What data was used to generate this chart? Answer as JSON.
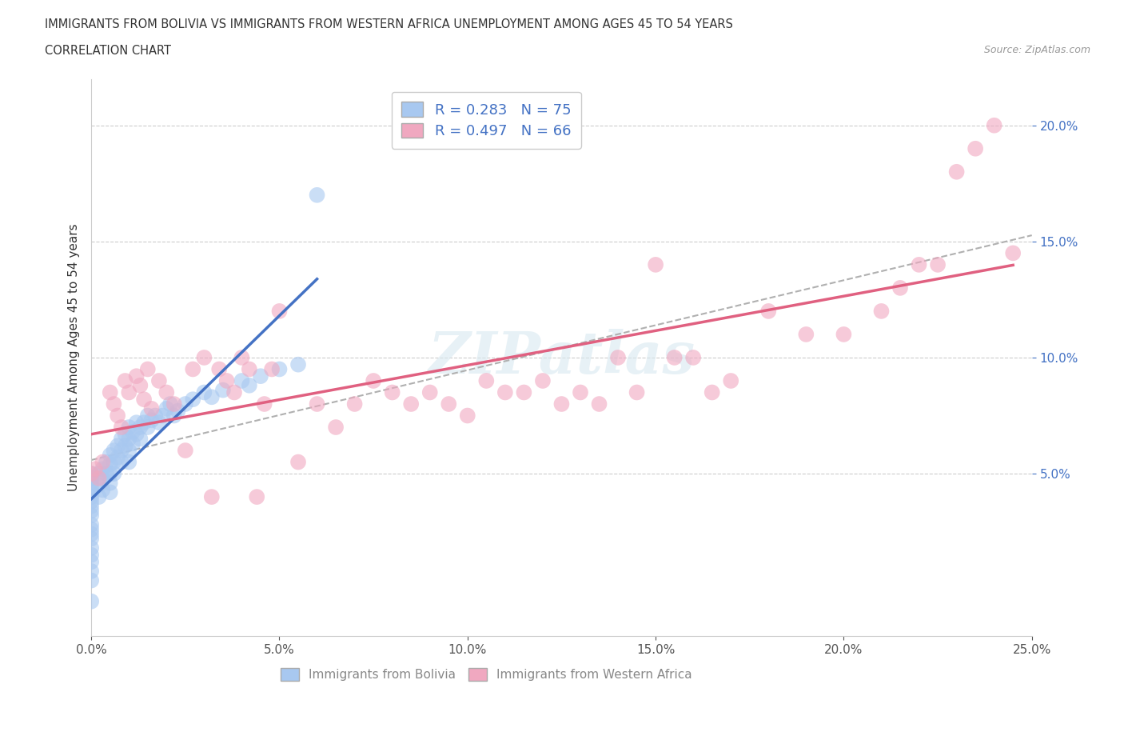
{
  "title_line1": "IMMIGRANTS FROM BOLIVIA VS IMMIGRANTS FROM WESTERN AFRICA UNEMPLOYMENT AMONG AGES 45 TO 54 YEARS",
  "title_line2": "CORRELATION CHART",
  "source": "Source: ZipAtlas.com",
  "ylabel": "Unemployment Among Ages 45 to 54 years",
  "xlim": [
    0.0,
    0.25
  ],
  "ylim": [
    -0.02,
    0.22
  ],
  "xticks": [
    0.0,
    0.05,
    0.1,
    0.15,
    0.2,
    0.25
  ],
  "yticks": [
    0.05,
    0.1,
    0.15,
    0.2
  ],
  "bolivia_color": "#a8c8f0",
  "western_africa_color": "#f0a8c0",
  "bolivia_R": 0.283,
  "bolivia_N": 75,
  "western_africa_R": 0.497,
  "western_africa_N": 66,
  "bolivia_line_color": "#4472c4",
  "western_africa_line_color": "#e06080",
  "yticklabel_color": "#4472c4",
  "xticklabel_color": "#555555",
  "trend_line_color": "#b0b0b0",
  "watermark": "ZIPatlas",
  "legend_label1": "Immigrants from Bolivia",
  "legend_label2": "Immigrants from Western Africa",
  "bolivia_x": [
    0.0,
    0.0,
    0.0,
    0.0,
    0.0,
    0.0,
    0.0,
    0.0,
    0.0,
    0.0,
    0.0,
    0.0,
    0.0,
    0.0,
    0.0,
    0.0,
    0.0,
    0.0,
    0.0,
    0.0,
    0.002,
    0.002,
    0.002,
    0.003,
    0.003,
    0.003,
    0.004,
    0.004,
    0.005,
    0.005,
    0.005,
    0.005,
    0.005,
    0.006,
    0.006,
    0.006,
    0.007,
    0.007,
    0.008,
    0.008,
    0.008,
    0.009,
    0.009,
    0.01,
    0.01,
    0.01,
    0.01,
    0.011,
    0.011,
    0.012,
    0.012,
    0.013,
    0.013,
    0.014,
    0.015,
    0.015,
    0.016,
    0.017,
    0.018,
    0.019,
    0.02,
    0.021,
    0.022,
    0.023,
    0.025,
    0.027,
    0.03,
    0.032,
    0.035,
    0.04,
    0.042,
    0.045,
    0.05,
    0.055,
    0.06
  ],
  "bolivia_y": [
    0.05,
    0.048,
    0.046,
    0.044,
    0.042,
    0.04,
    0.038,
    0.036,
    0.034,
    0.032,
    0.028,
    0.026,
    0.024,
    0.022,
    0.018,
    0.015,
    0.012,
    0.008,
    0.004,
    -0.005,
    0.05,
    0.045,
    0.04,
    0.052,
    0.048,
    0.043,
    0.055,
    0.05,
    0.058,
    0.054,
    0.05,
    0.046,
    0.042,
    0.06,
    0.055,
    0.05,
    0.062,
    0.057,
    0.065,
    0.06,
    0.055,
    0.067,
    0.062,
    0.07,
    0.065,
    0.06,
    0.055,
    0.068,
    0.063,
    0.072,
    0.067,
    0.07,
    0.065,
    0.072,
    0.075,
    0.07,
    0.073,
    0.075,
    0.072,
    0.075,
    0.078,
    0.08,
    0.075,
    0.077,
    0.08,
    0.082,
    0.085,
    0.083,
    0.086,
    0.09,
    0.088,
    0.092,
    0.095,
    0.097,
    0.17
  ],
  "western_africa_x": [
    0.0,
    0.001,
    0.002,
    0.003,
    0.005,
    0.006,
    0.007,
    0.008,
    0.009,
    0.01,
    0.012,
    0.013,
    0.014,
    0.015,
    0.016,
    0.018,
    0.02,
    0.022,
    0.025,
    0.027,
    0.03,
    0.032,
    0.034,
    0.036,
    0.038,
    0.04,
    0.042,
    0.044,
    0.046,
    0.048,
    0.05,
    0.055,
    0.06,
    0.065,
    0.07,
    0.075,
    0.08,
    0.085,
    0.09,
    0.095,
    0.1,
    0.105,
    0.11,
    0.115,
    0.12,
    0.125,
    0.13,
    0.135,
    0.14,
    0.145,
    0.15,
    0.155,
    0.16,
    0.165,
    0.17,
    0.18,
    0.19,
    0.2,
    0.21,
    0.215,
    0.22,
    0.225,
    0.23,
    0.235,
    0.24,
    0.245
  ],
  "western_africa_y": [
    0.05,
    0.052,
    0.048,
    0.055,
    0.085,
    0.08,
    0.075,
    0.07,
    0.09,
    0.085,
    0.092,
    0.088,
    0.082,
    0.095,
    0.078,
    0.09,
    0.085,
    0.08,
    0.06,
    0.095,
    0.1,
    0.04,
    0.095,
    0.09,
    0.085,
    0.1,
    0.095,
    0.04,
    0.08,
    0.095,
    0.12,
    0.055,
    0.08,
    0.07,
    0.08,
    0.09,
    0.085,
    0.08,
    0.085,
    0.08,
    0.075,
    0.09,
    0.085,
    0.085,
    0.09,
    0.08,
    0.085,
    0.08,
    0.1,
    0.085,
    0.14,
    0.1,
    0.1,
    0.085,
    0.09,
    0.12,
    0.11,
    0.11,
    0.12,
    0.13,
    0.14,
    0.14,
    0.18,
    0.19,
    0.2,
    0.145
  ]
}
